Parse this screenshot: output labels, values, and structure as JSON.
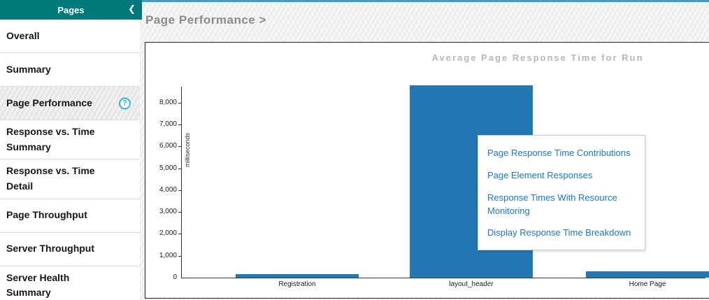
{
  "sidebar": {
    "title": "Pages",
    "collapse_glyph": "❮",
    "help_glyph": "?",
    "items": [
      {
        "label": "Overall",
        "selected": false,
        "has_help": false
      },
      {
        "label": "Summary",
        "selected": false,
        "has_help": false
      },
      {
        "label": "Page Performance",
        "selected": true,
        "has_help": true
      },
      {
        "label": "Response vs. Time Summary",
        "selected": false,
        "has_help": false
      },
      {
        "label": "Response vs. Time Detail",
        "selected": false,
        "has_help": false
      },
      {
        "label": "Page Throughput",
        "selected": false,
        "has_help": false
      },
      {
        "label": "Server Throughput",
        "selected": false,
        "has_help": false
      },
      {
        "label": "Server Health Summary",
        "selected": false,
        "has_help": false
      }
    ]
  },
  "main": {
    "breadcrumb": "Page Performance >"
  },
  "chart_data": {
    "type": "bar",
    "title": "Average Page Response Time for Run",
    "ylabel": "milliseconds",
    "xlabel": "",
    "categories": [
      "Registration",
      "layout_header",
      "Home Page"
    ],
    "values": [
      150,
      8800,
      300
    ],
    "yticks": [
      0,
      1000,
      2000,
      3000,
      4000,
      5000,
      6000,
      7000,
      8000
    ],
    "ylim": [
      0,
      8800
    ],
    "grid": false,
    "legend": false,
    "bar_color": "#2377b4"
  },
  "popup": {
    "links": [
      "Page Response Time Contributions",
      "Page Element Responses",
      "Response Times With Resource Monitoring",
      "Display Response Time Breakdown"
    ]
  },
  "colors": {
    "brand_teal": "#00797d",
    "accent_line": "#3f9ebb",
    "bar_blue": "#2377b4",
    "link_blue": "#1d78c2",
    "help_cyan": "#2fb4d8",
    "title_gray": "#8b8b8b",
    "chart_title_gray": "#b7b7b7"
  }
}
